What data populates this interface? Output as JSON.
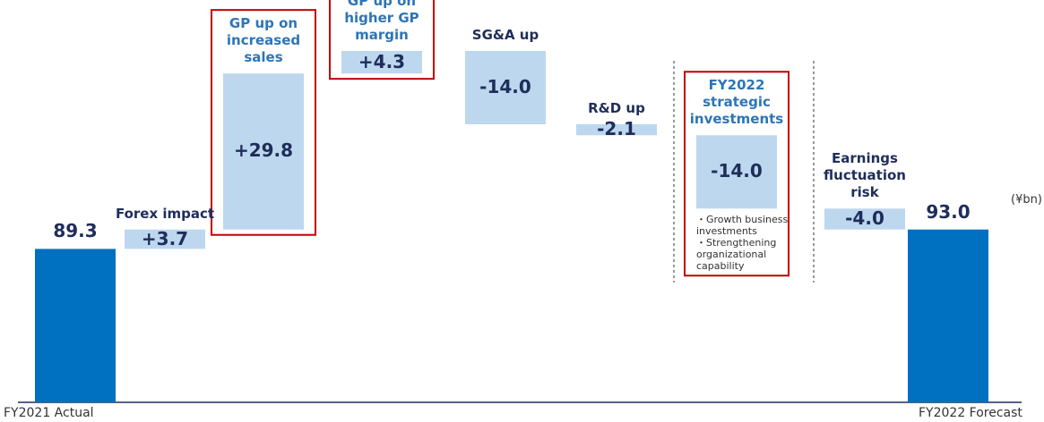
{
  "chart_data": {
    "type": "waterfall",
    "categories": [
      "FY2021 Actual",
      "Forex impact",
      "GP up on increased sales",
      "GP up on higher GP margin",
      "SG&A up",
      "R&D up",
      "FY2022 strategic investments",
      "Earnings fluctuation risk",
      "FY2022 Forecast"
    ],
    "values": [
      89.3,
      3.7,
      29.8,
      4.3,
      -14.0,
      -2.1,
      -14.0,
      -4.0,
      93.0
    ],
    "value_labels": [
      "89.3",
      "+3.7",
      "+29.8",
      "+4.3",
      "-14.0",
      "-2.1",
      "-14.0",
      "-4.0",
      "93.0"
    ],
    "measure": [
      "absolute",
      "relative",
      "relative",
      "relative",
      "relative",
      "relative",
      "relative",
      "relative",
      "total"
    ],
    "highlighted": [
      false,
      false,
      true,
      true,
      false,
      false,
      true,
      false,
      false
    ],
    "notes": {
      "index": 6,
      "lines": [
        "・Growth business investments",
        "・Strengthening organizational capability"
      ]
    },
    "unit": "(¥bn)",
    "total_color": "#0070c0",
    "delta_color": "#bdd7ee",
    "highlight_color": "#c00000",
    "ylim": [
      60,
      130
    ]
  }
}
